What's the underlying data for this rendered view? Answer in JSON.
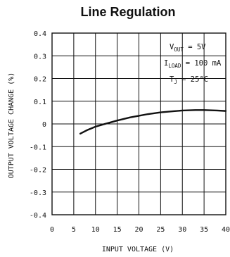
{
  "chart_data": {
    "type": "line",
    "title": "Line Regulation",
    "xlabel": "INPUT VOLTAGE (V)",
    "ylabel": "OUTPUT VOLTAGE CHANGE (%)",
    "xlim": [
      0,
      40
    ],
    "ylim": [
      -0.4,
      0.4
    ],
    "x_ticks": [
      "0",
      "5",
      "10",
      "15",
      "20",
      "25",
      "30",
      "35",
      "40"
    ],
    "y_ticks": [
      "0.4",
      "0.3",
      "0.2",
      "0.1",
      "0",
      "-0.1",
      "-0.2",
      "-0.3",
      "-0.4"
    ],
    "grid": true,
    "series": [
      {
        "x": [
          6.5,
          8,
          10,
          12,
          15,
          18,
          20,
          22,
          25,
          28,
          30,
          33,
          35,
          38,
          40
        ],
        "y": [
          -0.043,
          -0.028,
          -0.012,
          -0.001,
          0.015,
          0.029,
          0.036,
          0.043,
          0.051,
          0.056,
          0.059,
          0.061,
          0.061,
          0.059,
          0.057
        ]
      }
    ],
    "annotations": {
      "vout_label": "V",
      "vout_sub": "OUT",
      "vout_value": " = 5V",
      "iload_label": "I",
      "iload_sub": "LOAD",
      "iload_value": " = 100 mA",
      "tj_label": "T",
      "tj_sub": "J",
      "tj_value": " = 25°C"
    }
  }
}
